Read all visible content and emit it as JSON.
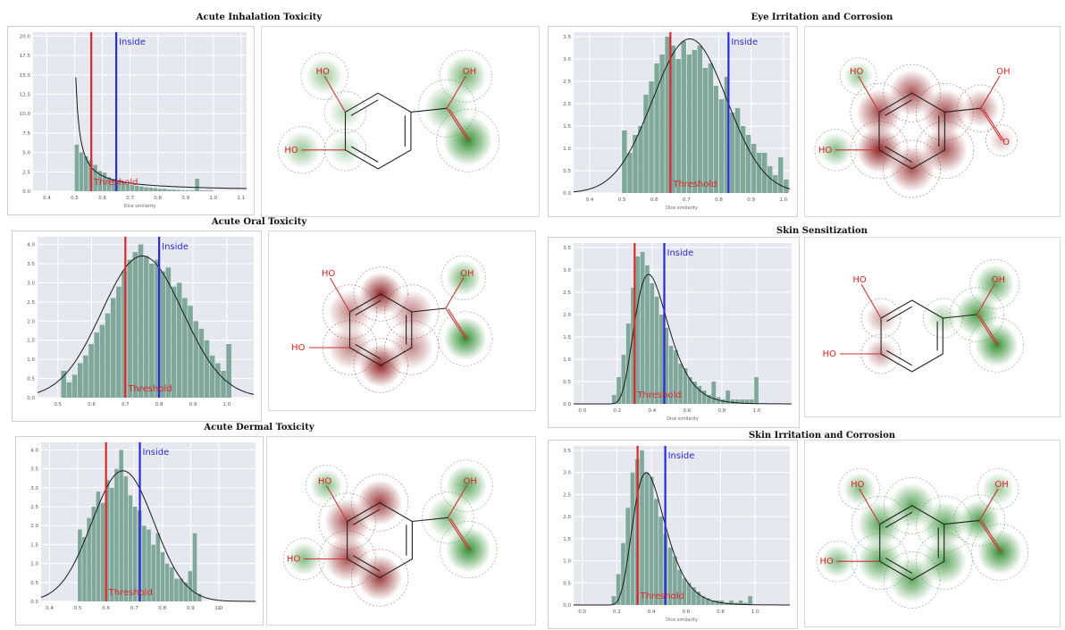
{
  "colors": {
    "plot_bg": "#e6e8ef",
    "grid": "#ffffff",
    "bar": "#7fa89a",
    "curve": "#1a1a1a",
    "threshold": "#e0262b",
    "inside": "#2a2ad8",
    "red_map": "#8b1a1a",
    "green_map": "#2a8a2a"
  },
  "panels": [
    {
      "title": "Acute Inhalation Toxicity",
      "chart": {
        "type": "bar",
        "xlabel": "Dice similarity",
        "xticks": [
          "0.4",
          "0.5",
          "0.6",
          "0.7",
          "0.8",
          "0.9",
          "1.0",
          "1.1"
        ],
        "xlim": [
          0.35,
          1.12
        ],
        "yticks": [
          "0.0",
          "2.5",
          "5.0",
          "7.5",
          "10.0",
          "12.5",
          "15.0",
          "17.5",
          "20.0"
        ],
        "ylim": [
          0,
          20.5
        ],
        "bin_start": 0.5,
        "bin_width": 0.0167,
        "values": [
          6,
          5,
          4.5,
          4,
          3.4,
          2.6,
          2.4,
          1.8,
          1.6,
          1.4,
          1.2,
          0.9,
          0.8,
          0.7,
          0.6,
          0.5,
          0.45,
          0.4,
          0.3,
          0.3,
          0.2,
          0.2,
          0.15,
          0.1,
          0.1,
          0.1,
          1.6,
          0.1,
          0.1,
          0.1
        ],
        "curve": {
          "kind": "decay",
          "a": 0.22,
          "b": 0.5,
          "c": 0.7
        },
        "threshold": 0.56,
        "inside": 0.65,
        "threshold_label": "Threshold",
        "inside_label": "Inside"
      },
      "molecule": {
        "labels": [
          "HO",
          "HO",
          "OH"
        ],
        "map": "green"
      }
    },
    {
      "title": "Eye Irritation and Corrosion",
      "chart": {
        "type": "bar",
        "xlabel": "Dice similarity",
        "xticks": [
          "0.4",
          "0.5",
          "0.6",
          "0.7",
          "0.8",
          "0.9",
          "1.0"
        ],
        "xlim": [
          0.35,
          1.02
        ],
        "yticks": [
          "0.0",
          "0.5",
          "1.0",
          "1.5",
          "2.0",
          "2.5",
          "3.0",
          "3.5"
        ],
        "ylim": [
          0,
          3.6
        ],
        "bin_start": 0.5,
        "bin_width": 0.0167,
        "values": [
          1.4,
          0.9,
          1.3,
          1.5,
          2.2,
          2.5,
          2.9,
          3.1,
          3.5,
          3.3,
          3.0,
          3.4,
          3.1,
          3.2,
          3.3,
          2.8,
          2.9,
          2.4,
          2.1,
          2.6,
          1.8,
          1.9,
          1.5,
          1.3,
          1.1,
          0.9,
          0.9,
          0.6,
          0.4,
          0.8,
          0.3
        ],
        "curve": {
          "kind": "gauss",
          "mu": 0.71,
          "sigma": 0.115,
          "peak": 3.45
        },
        "threshold": 0.65,
        "inside": 0.83,
        "threshold_label": "Threshold",
        "inside_label": "Inside"
      },
      "molecule": {
        "labels": [
          "HO",
          "HO",
          "OH",
          "O"
        ],
        "map": "red"
      }
    },
    {
      "title": "Acute Oral Toxicity",
      "chart": {
        "type": "bar",
        "xlabel": "",
        "xticks": [
          "0.5",
          "0.6",
          "0.7",
          "0.8",
          "0.9",
          "1.0"
        ],
        "xlim": [
          0.44,
          1.08
        ],
        "yticks": [
          "0.0",
          "0.5",
          "1.0",
          "1.5",
          "2.0",
          "2.5",
          "3.0",
          "3.5",
          "4.0"
        ],
        "ylim": [
          0,
          4.2
        ],
        "bin_start": 0.51,
        "bin_width": 0.0163,
        "values": [
          0.7,
          0.4,
          0.6,
          0.9,
          1.1,
          1.4,
          1.7,
          1.9,
          2.2,
          2.6,
          2.9,
          3.3,
          3.6,
          3.8,
          4.0,
          3.7,
          3.5,
          3.6,
          3.3,
          3.4,
          2.9,
          3.0,
          2.6,
          2.4,
          2.0,
          1.8,
          1.5,
          1.1,
          0.9,
          0.7,
          1.4
        ],
        "curve": {
          "kind": "gauss",
          "mu": 0.75,
          "sigma": 0.12,
          "peak": 3.7
        },
        "threshold": 0.7,
        "inside": 0.8,
        "threshold_label": "Threshold",
        "inside_label": "Inside"
      },
      "molecule": {
        "labels": [
          "HO",
          "HO",
          "OH"
        ],
        "map": "mixed_oral"
      }
    },
    {
      "title": "Skin Sensitization",
      "chart": {
        "type": "bar",
        "xlabel": "Dice similarity",
        "xticks": [
          "0.0",
          "0.2",
          "0.4",
          "0.6",
          "0.8",
          "1.0"
        ],
        "xlim": [
          -0.05,
          1.2
        ],
        "yticks": [
          "0.0",
          "0.5",
          "1.0",
          "1.5",
          "2.0",
          "2.5",
          "3.0",
          "3.5"
        ],
        "ylim": [
          0,
          3.6
        ],
        "bin_start": 0.17,
        "bin_width": 0.0272,
        "values": [
          0.2,
          0.6,
          1.1,
          1.8,
          2.6,
          3.3,
          3.4,
          3.1,
          2.7,
          2.4,
          2.0,
          1.7,
          1.3,
          1.2,
          0.9,
          0.8,
          0.6,
          0.5,
          0.4,
          0.3,
          0.2,
          0.5,
          0.15,
          0.1,
          0.3,
          0.1,
          0.1,
          0.1,
          0.1,
          0.1,
          0.6
        ],
        "curve": {
          "kind": "lognorm",
          "mu": 0.38,
          "sigma": 0.11,
          "peak": 2.9
        },
        "threshold": 0.3,
        "inside": 0.47,
        "threshold_label": "Threshold",
        "inside_label": "Inside"
      },
      "molecule": {
        "labels": [
          "HO",
          "HO",
          "OH"
        ],
        "map": "mixed_skin"
      }
    },
    {
      "title": "Acute Dermal Toxicity",
      "chart": {
        "type": "bar",
        "xlabel": "",
        "xticks": [
          "0.4",
          "0.5",
          "0.6",
          "0.7",
          "0.8",
          "0.9",
          "1.0",
          "1"
        ],
        "xlim": [
          0.37,
          1.13
        ],
        "yticks": [
          "0.0",
          "0.5",
          "1.0",
          "1.5",
          "2.0",
          "2.5",
          "3.0",
          "3.5",
          "4.0"
        ],
        "ylim": [
          0,
          4.2
        ],
        "bin_start": 0.5,
        "bin_width": 0.0163,
        "values": [
          1.9,
          1.7,
          2.2,
          2.5,
          2.9,
          2.6,
          3.2,
          3.0,
          3.5,
          4.0,
          3.3,
          2.8,
          2.5,
          2.4,
          2.0,
          1.9,
          1.5,
          1.8,
          1.3,
          1.0,
          0.9,
          0.6,
          0.6,
          0.5,
          0.8,
          1.8,
          0.2
        ],
        "curve": {
          "kind": "gauss",
          "mu": 0.66,
          "sigma": 0.11,
          "peak": 3.45
        },
        "threshold": 0.6,
        "inside": 0.72,
        "threshold_label": "Threshold",
        "inside_label": "Inside"
      },
      "molecule": {
        "labels": [
          "HO",
          "HO",
          "OH"
        ],
        "map": "mixed_dermal"
      }
    },
    {
      "title": "Skin Irritation and Corrosion",
      "chart": {
        "type": "bar",
        "xlabel": "Dice similarity",
        "xticks": [
          "0.0",
          "0.2",
          "0.4",
          "0.6",
          "0.8",
          "1.0"
        ],
        "xlim": [
          -0.05,
          1.2
        ],
        "yticks": [
          "0.0",
          "0.5",
          "1.0",
          "1.5",
          "2.0",
          "2.5",
          "3.0",
          "3.5"
        ],
        "ylim": [
          0,
          3.6
        ],
        "bin_start": 0.17,
        "bin_width": 0.0272,
        "values": [
          0.2,
          0.7,
          1.4,
          2.2,
          3.0,
          3.3,
          3.5,
          3.0,
          2.9,
          2.4,
          2.0,
          1.6,
          1.3,
          1.1,
          0.8,
          0.6,
          0.5,
          0.4,
          0.3,
          0.2,
          0.15,
          0.1,
          0.1,
          0.1,
          0.05,
          0.1,
          0.05,
          0.1,
          0.05,
          0.2
        ],
        "curve": {
          "kind": "lognorm",
          "mu": 0.37,
          "sigma": 0.1,
          "peak": 3.0
        },
        "threshold": 0.32,
        "inside": 0.48,
        "threshold_label": "Threshold",
        "inside_label": "Inside"
      },
      "molecule": {
        "labels": [
          "HO",
          "HO",
          "OH"
        ],
        "map": "green_full"
      }
    }
  ]
}
